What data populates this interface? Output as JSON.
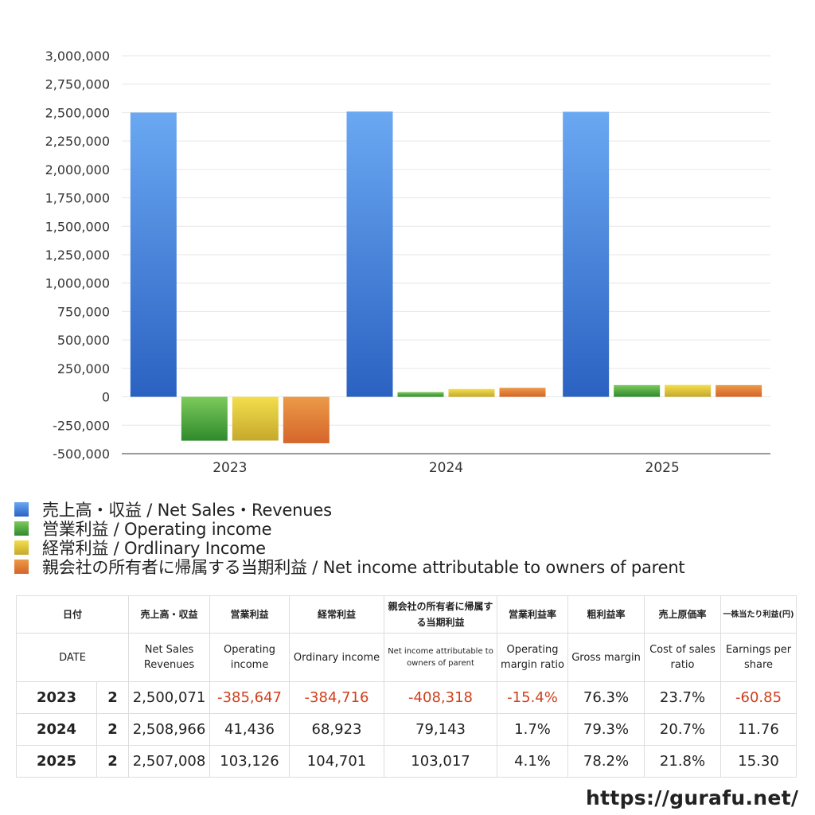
{
  "chart_data": {
    "type": "bar",
    "categories": [
      "2023",
      "2024",
      "2025"
    ],
    "series": [
      {
        "name": "売上高・収益 / Net Sales・Revenues",
        "color": "#4a8be0",
        "values": [
          2500071,
          2508966,
          2507008
        ]
      },
      {
        "name": "営業利益 / Operating income",
        "color": "#4fa33f",
        "values": [
          -385647,
          41436,
          103126
        ]
      },
      {
        "name": "経常利益 / Ordlinary Income",
        "color": "#dcc23a",
        "values": [
          -384716,
          68923,
          104701
        ]
      },
      {
        "name": "親会社の所有者に帰属する当期利益 / Net income attributable to owners of parent",
        "color": "#e0782e",
        "values": [
          -408318,
          79143,
          103017
        ]
      }
    ],
    "ylim": [
      -500000,
      3000000
    ],
    "yticks": [
      "3,000,000",
      "2,750,000",
      "2,500,000",
      "2,250,000",
      "2,000,000",
      "1,750,000",
      "1,500,000",
      "1,250,000",
      "1,000,000",
      "750,000",
      "500,000",
      "250,000",
      "0",
      "-250,000",
      "-500,000"
    ],
    "grid": true,
    "legend": "bottom-left"
  },
  "table": {
    "headers_jp": [
      "日付",
      "売上高・収益",
      "営業利益",
      "経常利益",
      "親会社の所有者に帰属する当期利益",
      "営業利益率",
      "粗利益率",
      "売上原価率",
      "一株当たり利益(円)"
    ],
    "headers_en": [
      "DATE",
      "Net Sales Revenues",
      "Operating income",
      "Ordinary income",
      "Net income attributable to owners of parent",
      "Operating margin ratio",
      "Gross margin",
      "Cost of sales ratio",
      "Earnings per share"
    ],
    "rows": [
      {
        "year": "2023",
        "month": "2",
        "values": [
          "2,500,071",
          "-385,647",
          "-384,716",
          "-408,318",
          "-15.4%",
          "76.3%",
          "23.7%",
          "-60.85"
        ]
      },
      {
        "year": "2024",
        "month": "2",
        "values": [
          "2,508,966",
          "41,436",
          "68,923",
          "79,143",
          "1.7%",
          "79.3%",
          "20.7%",
          "11.76"
        ]
      },
      {
        "year": "2025",
        "month": "2",
        "values": [
          "2,507,008",
          "103,126",
          "104,701",
          "103,017",
          "4.1%",
          "78.2%",
          "21.8%",
          "15.30"
        ]
      }
    ]
  },
  "footer": {
    "url": "https://gurafu.net/"
  }
}
